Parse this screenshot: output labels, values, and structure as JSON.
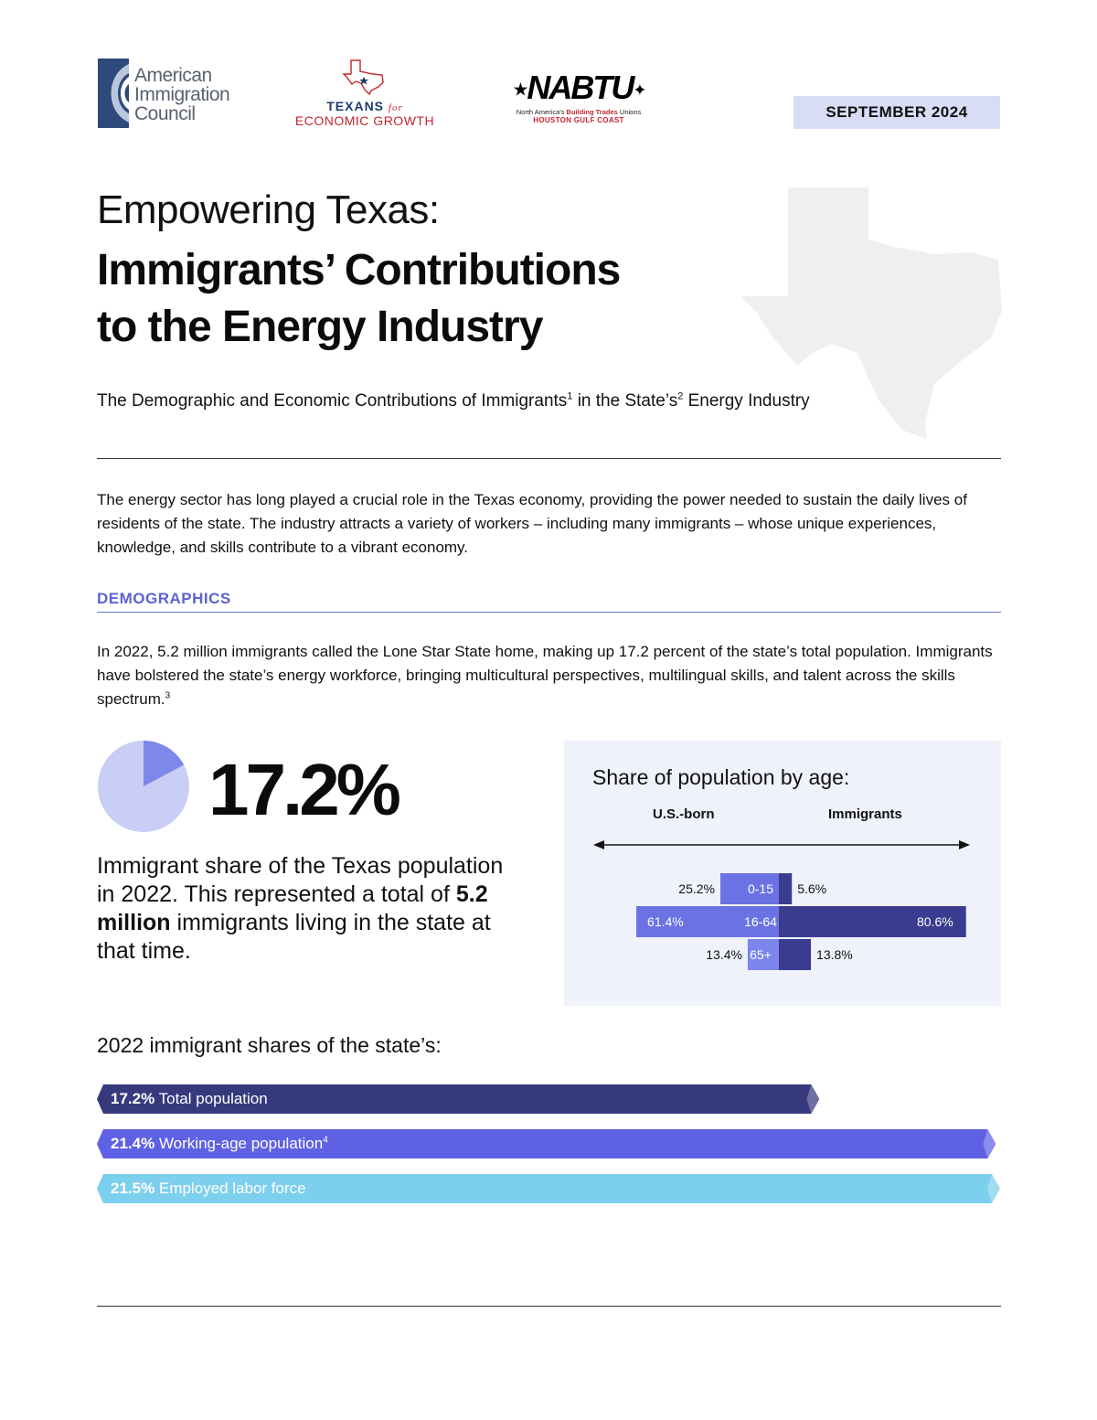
{
  "header": {
    "logos": {
      "aic": {
        "lines": [
          "American",
          "Immigration",
          "Council"
        ]
      },
      "teg": {
        "line1": "TEXANS",
        "for": "for",
        "line2": "ECONOMIC GROWTH"
      },
      "nabtu": {
        "brand": "NABTU",
        "sub_pre": "North America's ",
        "sub_bold": "Building Trades",
        "sub_post": " Unions",
        "sub2": "HOUSTON GULF COAST"
      }
    },
    "date": "SEPTEMBER 2024"
  },
  "title": {
    "line1": "Empowering Texas:",
    "line2": "Immigrants’ Contributions",
    "line3": "to the Energy Industry"
  },
  "subtitle": {
    "part1": "The Demographic and Economic Contributions of Immigrants",
    "sup1": "1",
    "part2": " in the State’s",
    "sup2": "2",
    "part3": " Energy Industry"
  },
  "intro": "The energy sector has long played a crucial role in the Texas economy, providing the power needed to sustain the daily lives of residents of the state. The industry attracts a variety of workers – including many immigrants – whose unique experiences, knowledge, and skills contribute to a vibrant economy.",
  "demographics": {
    "heading": "DEMOGRAPHICS",
    "text": "In 2022, 5.2 million immigrants called the Lone Star State home, making up 17.2 percent of the state’s total population. Immigrants have bolstered the state’s energy workforce, bringing multicultural perspectives, multilingual skills, and talent across the skills spectrum.",
    "text_sup": "3"
  },
  "stat": {
    "value": "17.2%",
    "share": 0.172,
    "desc_pre": "Immigrant share of the Texas population in 2022. This represented a total of ",
    "desc_bold": "5.2 million",
    "desc_post": " immigrants living in the state at that time."
  },
  "chart_data": [
    {
      "type": "bar",
      "title": "Share of population by age:",
      "left_label": "U.S.-born",
      "right_label": "Immigrants",
      "categories": [
        "0-15",
        "16-64",
        "65+"
      ],
      "series": [
        {
          "name": "U.S.-born",
          "values": [
            25.2,
            61.4,
            13.4
          ],
          "labels": [
            "25.2%",
            "61.4%",
            "13.4%"
          ]
        },
        {
          "name": "Immigrants",
          "values": [
            5.6,
            80.6,
            13.8
          ],
          "labels": [
            "5.6%",
            "80.6%",
            "13.8%"
          ]
        }
      ],
      "colors": {
        "light": "#6b73e4",
        "pale": "#7c86ec",
        "dark": "#3a3d8f"
      }
    },
    {
      "type": "bar",
      "title": "2022 immigrant shares of the state’s:",
      "bars": [
        {
          "value": 17.2,
          "value_label": "17.2%",
          "label": "Total population",
          "sup": "",
          "color": "#363a7d"
        },
        {
          "value": 21.4,
          "value_label": "21.4%",
          "label": "Working-age population",
          "sup": "4",
          "color": "#5f61e4"
        },
        {
          "value": 21.5,
          "value_label": "21.5%",
          "label": "Employed labor force",
          "sup": "",
          "color": "#7dcfee"
        }
      ]
    }
  ]
}
